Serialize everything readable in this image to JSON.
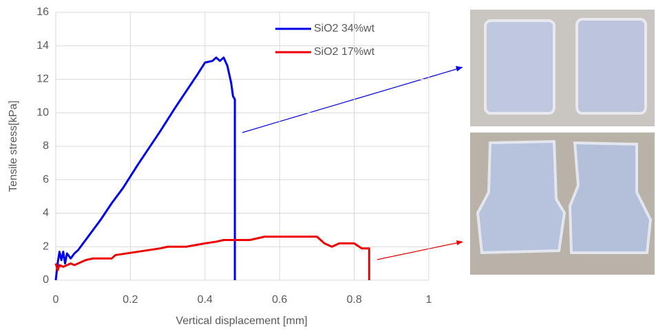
{
  "chart_data": {
    "type": "line",
    "x_label": "Vertical displacement [mm]",
    "y_label": "Tensile stress[kPa]",
    "xlim": [
      0,
      1
    ],
    "xticks": [
      0,
      0.2,
      0.4,
      0.6,
      0.8,
      1
    ],
    "ylim": [
      0,
      16
    ],
    "yticks": [
      0,
      2,
      4,
      6,
      8,
      10,
      12,
      14,
      16
    ],
    "grid": true,
    "legend": "top-right",
    "series": [
      {
        "name": "SiO2 34%wt",
        "color": "#0000ee",
        "x": [
          0,
          0.005,
          0.01,
          0.015,
          0.02,
          0.025,
          0.03,
          0.04,
          0.05,
          0.06,
          0.08,
          0.1,
          0.12,
          0.15,
          0.18,
          0.2,
          0.22,
          0.25,
          0.28,
          0.3,
          0.32,
          0.35,
          0.38,
          0.4,
          0.42,
          0.43,
          0.44,
          0.45,
          0.46,
          0.47,
          0.475,
          0.48,
          0.48
        ],
        "values": [
          0,
          1.0,
          1.7,
          1.2,
          1.7,
          1.0,
          1.6,
          1.3,
          1.6,
          1.8,
          2.4,
          3.0,
          3.6,
          4.6,
          5.5,
          6.2,
          6.9,
          7.9,
          8.9,
          9.6,
          10.3,
          11.3,
          12.3,
          13.0,
          13.1,
          13.3,
          13.1,
          13.3,
          12.8,
          11.8,
          11.0,
          10.8,
          0
        ]
      },
      {
        "name": "SiO2 17%wt",
        "color": "#ee0000",
        "x": [
          0,
          0.005,
          0.01,
          0.02,
          0.04,
          0.05,
          0.08,
          0.1,
          0.15,
          0.16,
          0.22,
          0.28,
          0.3,
          0.35,
          0.4,
          0.43,
          0.45,
          0.48,
          0.52,
          0.56,
          0.6,
          0.65,
          0.7,
          0.72,
          0.74,
          0.76,
          0.8,
          0.82,
          0.84,
          0.84
        ],
        "values": [
          1.0,
          0.6,
          0.9,
          0.8,
          1.0,
          0.9,
          1.2,
          1.3,
          1.3,
          1.5,
          1.7,
          1.9,
          2.0,
          2.0,
          2.2,
          2.3,
          2.4,
          2.4,
          2.4,
          2.6,
          2.6,
          2.6,
          2.6,
          2.2,
          2.0,
          2.2,
          2.2,
          1.9,
          1.9,
          0
        ]
      }
    ]
  }
}
